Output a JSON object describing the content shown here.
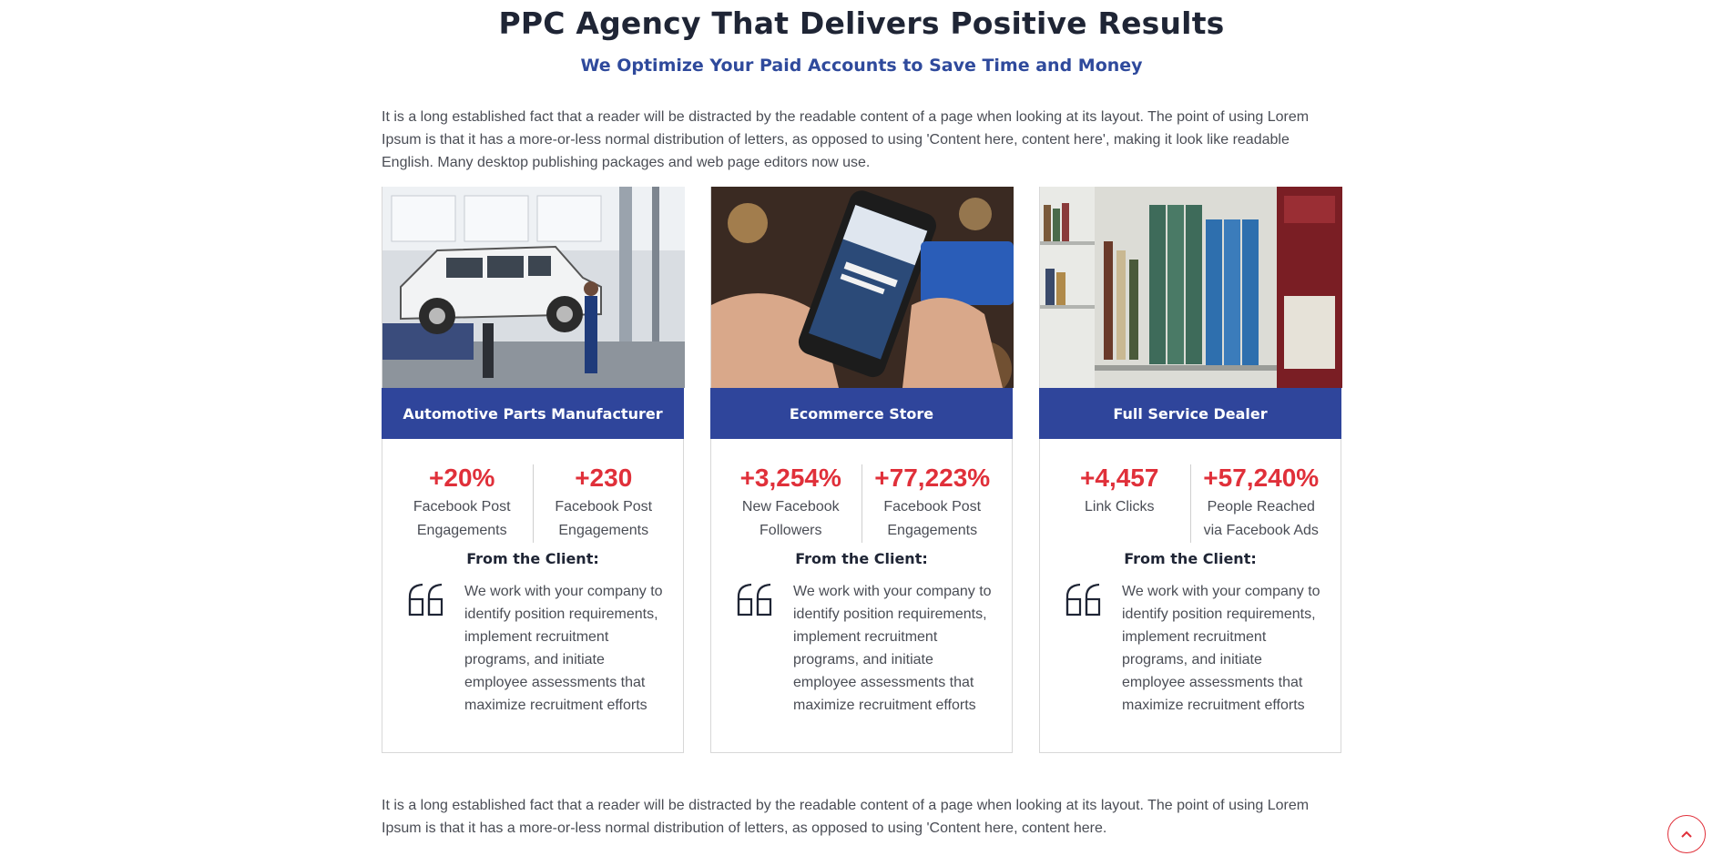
{
  "header": {
    "title": "PPC Agency That Delivers Positive Results",
    "subtitle": "We Optimize Your Paid Accounts to Save Time and Money"
  },
  "intro_text": "It is a long established fact that a reader will be distracted by the readable content of a page when looking at its layout. The point of using Lorem Ipsum is that it has a more-or-less normal distribution of letters, as opposed to using 'Content here, content here', making it look like readable English. Many desktop publishing packages and web page editors now use.",
  "cards": [
    {
      "title": "Automotive Parts Manufacturer",
      "image": "auto-garage-photo",
      "stats": [
        {
          "value": "+20%",
          "label": "Facebook Post Engagements"
        },
        {
          "value": "+230",
          "label": "Facebook Post Engagements"
        }
      ],
      "client_heading": "From the Client:",
      "quote": "We work with your company to identify position requirements, implement recruitment programs, and initiate employee assessments that maximize recruitment efforts"
    },
    {
      "title": "Ecommerce Store",
      "image": "ecommerce-phone-photo",
      "stats": [
        {
          "value": "+3,254%",
          "label": "New Facebook Followers"
        },
        {
          "value": "+77,223%",
          "label": "Facebook Post Engagements"
        }
      ],
      "client_heading": "From the Client:",
      "quote": "We work with your company to identify position requirements, implement recruitment programs, and initiate employee assessments that maximize recruitment efforts"
    },
    {
      "title": "Full Service Dealer",
      "image": "library-books-photo",
      "stats": [
        {
          "value": "+4,457",
          "label": "Link Clicks"
        },
        {
          "value": "+57,240%",
          "label": "People Reached via Facebook Ads"
        }
      ],
      "client_heading": "From the Client:",
      "quote": "We work with your company to identify position requirements, implement recruitment programs, and initiate employee assessments that maximize recruitment efforts"
    }
  ],
  "outro_text": "It is a long established fact that a reader will be distracted by the readable content of a page when looking at its layout. The point of using Lorem Ipsum is that it has a more-or-less normal distribution of letters, as opposed to using 'Content here, content here.",
  "icons": {
    "quote": "quote-icon",
    "scroll_top": "chevron-up-icon"
  },
  "colors": {
    "accent_blue": "#2f459b",
    "stat_red": "#e0303a",
    "heading_dark": "#1f2535"
  }
}
